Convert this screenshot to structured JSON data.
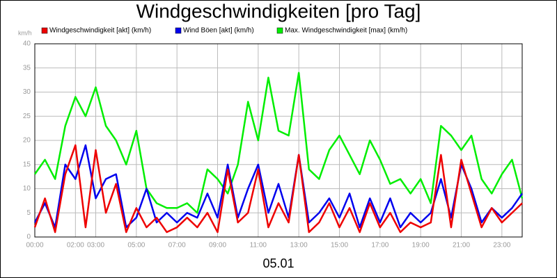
{
  "chart_data": {
    "type": "line",
    "title": "Windgeschwindigkeiten [pro Tag]",
    "y_label": "km/h",
    "x_label": "05.01",
    "xlim": [
      0,
      24
    ],
    "ylim": [
      0,
      40
    ],
    "yticks": [
      0,
      5,
      10,
      15,
      20,
      25,
      30,
      35,
      40
    ],
    "xticks": [
      {
        "value": 0,
        "label": "00:00"
      },
      {
        "value": 2,
        "label": "02:00"
      },
      {
        "value": 3,
        "label": "03:00"
      },
      {
        "value": 5,
        "label": "05:00"
      },
      {
        "value": 7,
        "label": "07:00"
      },
      {
        "value": 9,
        "label": "09:00"
      },
      {
        "value": 11,
        "label": "11:00"
      },
      {
        "value": 13,
        "label": "13:00"
      },
      {
        "value": 15,
        "label": "15:00"
      },
      {
        "value": 17,
        "label": "17:00"
      },
      {
        "value": 19,
        "label": "19:00"
      },
      {
        "value": 21,
        "label": "21:00"
      },
      {
        "value": 23,
        "label": "23:00"
      }
    ],
    "grid": true,
    "legend": "top",
    "x": [
      0,
      0.5,
      1,
      1.5,
      2,
      2.5,
      3,
      3.5,
      4,
      4.5,
      5,
      5.5,
      6,
      6.5,
      7,
      7.5,
      8,
      8.5,
      9,
      9.5,
      10,
      10.5,
      11,
      11.5,
      12,
      12.5,
      13,
      13.5,
      14,
      14.5,
      15,
      15.5,
      16,
      16.5,
      17,
      17.5,
      18,
      18.5,
      19,
      19.5,
      20,
      20.5,
      21,
      21.5,
      22,
      22.5,
      23,
      23.5,
      24
    ],
    "series": [
      {
        "name": "Max. Windgeschwindigkeit [max] (km/h)",
        "color": "#00ee00",
        "values": [
          13,
          16,
          12,
          23,
          29,
          25,
          31,
          23,
          20,
          15,
          22,
          10,
          7,
          6,
          6,
          7,
          5,
          14,
          12,
          9,
          15,
          28,
          20,
          33,
          22,
          21,
          34,
          14,
          12,
          18,
          21,
          17,
          13,
          20,
          16,
          11,
          12,
          9,
          12,
          7,
          23,
          21,
          18,
          21,
          12,
          9,
          13,
          16,
          8
        ]
      },
      {
        "name": "Wind Böen [akt] (km/h)",
        "color": "#0000ee",
        "values": [
          3,
          7,
          2,
          15,
          12,
          19,
          8,
          12,
          13,
          2,
          4,
          10,
          3,
          5,
          3,
          5,
          4,
          9,
          4,
          15,
          4,
          10,
          15,
          5,
          11,
          4,
          17,
          3,
          5,
          8,
          4,
          9,
          2,
          8,
          3,
          8,
          2,
          5,
          3,
          5,
          12,
          4,
          15,
          10,
          3,
          6,
          4,
          6,
          9
        ]
      },
      {
        "name": "Windgeschwindigkeit [akt] (km/h)",
        "color": "#ee0000",
        "values": [
          2,
          8,
          1,
          13,
          19,
          2,
          18,
          5,
          11,
          1,
          6,
          2,
          4,
          1,
          2,
          4,
          2,
          5,
          1,
          14,
          3,
          5,
          14,
          2,
          7,
          3,
          17,
          1,
          3,
          7,
          2,
          6,
          1,
          7,
          2,
          5,
          1,
          3,
          2,
          3,
          17,
          2,
          16,
          9,
          2,
          6,
          3,
          5,
          7
        ]
      }
    ]
  }
}
